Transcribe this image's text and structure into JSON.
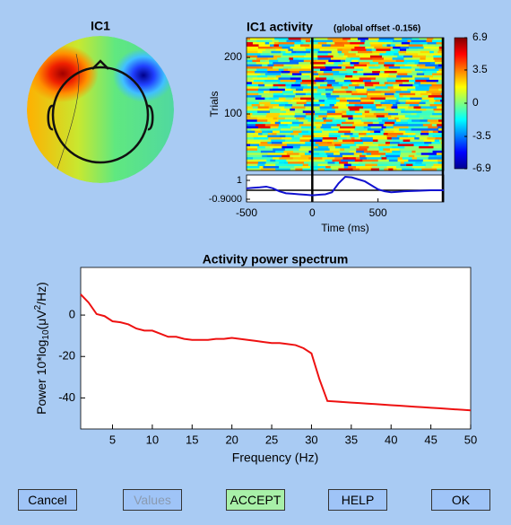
{
  "topo": {
    "title": "IC1"
  },
  "erp_image": {
    "title": "IC1 activity",
    "subtitle": "(global offset -0.156)",
    "ylabel": "Trials",
    "xlabel": "Time (ms)",
    "ylim": [
      0,
      235
    ],
    "yticks": [
      100,
      200
    ],
    "xlim": [
      -500,
      1000
    ],
    "xticks": [
      -500,
      0,
      500
    ],
    "colorbar": {
      "lim": [
        -6.9,
        6.9
      ],
      "ticks": [
        6.9,
        3.5,
        0,
        -3.5,
        -6.9
      ]
    },
    "trace": {
      "color": "#1010d0",
      "ylim": [
        -1.17,
        1.54
      ],
      "yticks": [
        {
          "value": 1,
          "label": "1"
        },
        {
          "value": -0.9,
          "label": "-0.9000"
        }
      ],
      "x": [
        -500,
        -450,
        -400,
        -350,
        -300,
        -250,
        -200,
        -150,
        -100,
        -50,
        0,
        50,
        100,
        150,
        200,
        250,
        300,
        350,
        400,
        450,
        500,
        550,
        600,
        650,
        700,
        800,
        900,
        1000
      ],
      "values": [
        0.2,
        0.25,
        0.3,
        0.37,
        0.2,
        -0.1,
        -0.3,
        -0.35,
        -0.4,
        -0.45,
        -0.5,
        -0.45,
        -0.4,
        -0.2,
        0.7,
        1.36,
        1.3,
        1.1,
        0.9,
        0.5,
        0.1,
        -0.1,
        -0.2,
        -0.15,
        -0.1,
        -0.05,
        0.0,
        0.0
      ]
    }
  },
  "spectrum": {
    "type": "line",
    "title": "Activity power spectrum",
    "xlabel": "Frequency (Hz)",
    "ylabel": {
      "prefix": "Power 10*log",
      "sub": "10",
      "mid": "(μV",
      "sup": "2",
      "suffix": "/Hz)"
    },
    "color": "#ee1111",
    "x": [
      1,
      2,
      3,
      4,
      5,
      6,
      7,
      8,
      9,
      10,
      11,
      12,
      13,
      14,
      15,
      16,
      17,
      18,
      19,
      20,
      21,
      22,
      23,
      24,
      25,
      26,
      27,
      28,
      29,
      30,
      31,
      32,
      33,
      34,
      35,
      36,
      37,
      38,
      39,
      40,
      41,
      42,
      43,
      44,
      45,
      46,
      47,
      48,
      49,
      50
    ],
    "values": [
      10,
      6,
      0.5,
      -0.5,
      -3,
      -3.5,
      -4.5,
      -6.5,
      -7.5,
      -7.5,
      -9,
      -10.5,
      -10.5,
      -11.5,
      -12,
      -12,
      -12,
      -11.5,
      -11.5,
      -11,
      -11.5,
      -12,
      -12.5,
      -13,
      -13.5,
      -13.5,
      -14,
      -14.5,
      -16,
      -18.5,
      -31,
      -41.5,
      -41.75,
      -42,
      -42.25,
      -42.5,
      -42.75,
      -43,
      -43.25,
      -43.5,
      -43.75,
      -44,
      -44.25,
      -44.5,
      -44.75,
      -45,
      -45.25,
      -45.5,
      -45.75,
      -46
    ],
    "xlim": [
      1,
      50
    ],
    "xticks": [
      5,
      10,
      15,
      20,
      25,
      30,
      35,
      40,
      45,
      50
    ],
    "ylim": [
      -55,
      23
    ],
    "yticks": [
      0,
      -20,
      -40
    ]
  },
  "buttons": [
    "Cancel",
    "Values",
    "ACCEPT",
    "HELP",
    "OK"
  ]
}
